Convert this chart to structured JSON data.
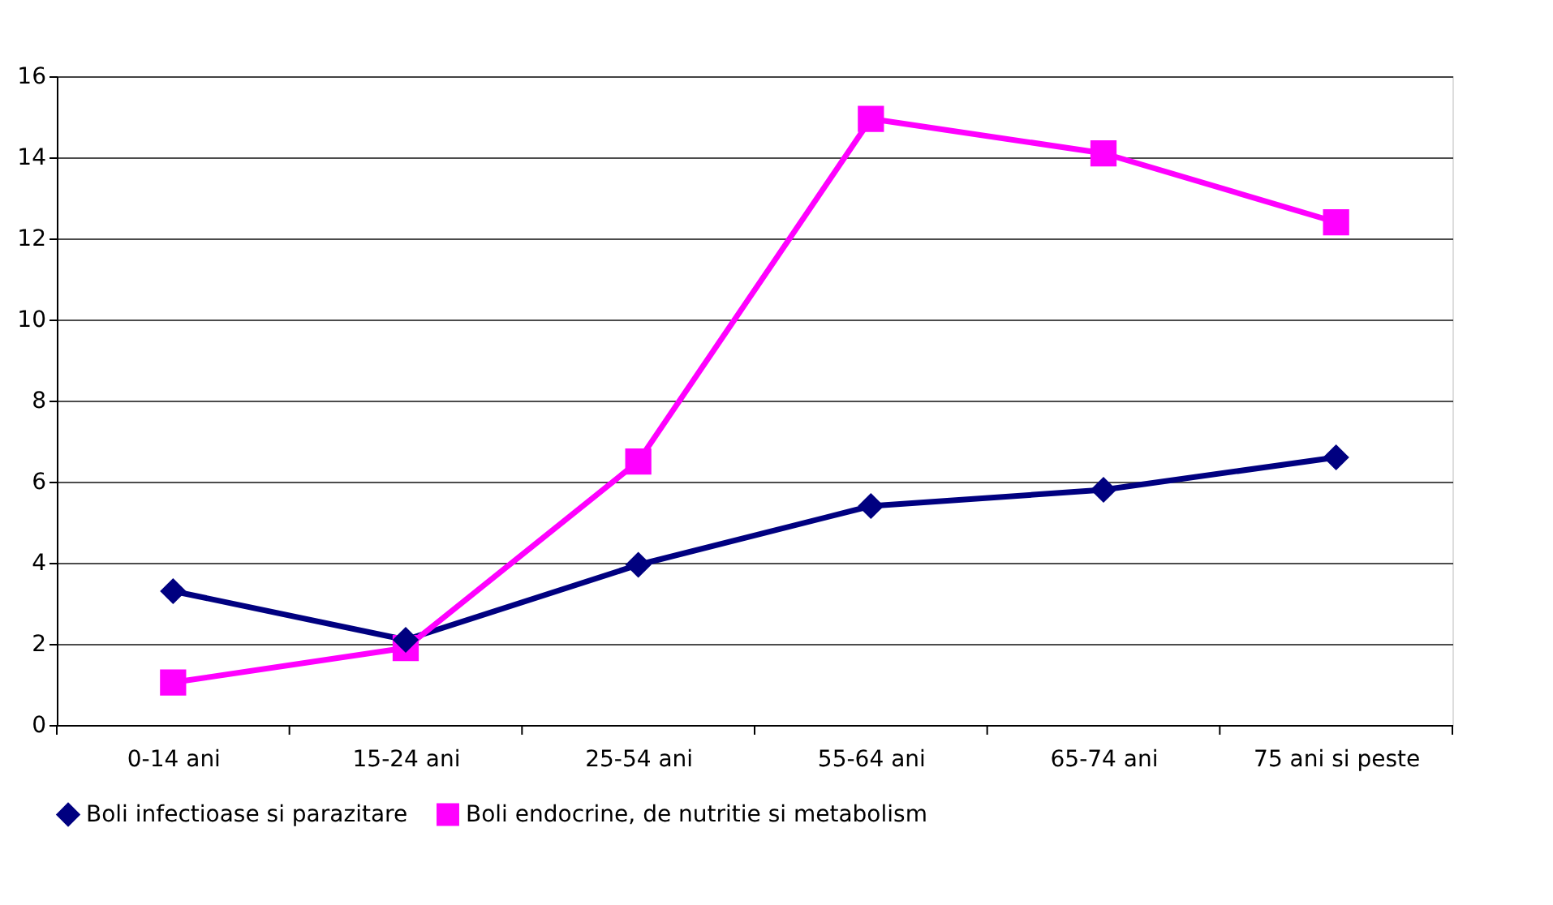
{
  "chart_data": {
    "type": "line",
    "categories": [
      "0-14 ani",
      "15-24 ani",
      "25-54 ani",
      "55-64 ani",
      "65-74 ani",
      "75 ani si peste"
    ],
    "series": [
      {
        "name": "Boli infectioase si parazitare",
        "color": "#000080",
        "marker": "diamond",
        "values": [
          3.3,
          2.1,
          3.95,
          5.4,
          5.8,
          6.6
        ]
      },
      {
        "name": "Boli endocrine, de nutritie si metabolism",
        "color": "#ff00ff",
        "marker": "square",
        "values": [
          1.05,
          1.9,
          6.5,
          14.95,
          14.1,
          12.4
        ]
      }
    ],
    "ylim": [
      0,
      16
    ],
    "yticks": [
      0,
      2,
      4,
      6,
      8,
      10,
      12,
      14,
      16
    ],
    "grid": "y",
    "legend": "bottom",
    "line_style": "solid"
  }
}
